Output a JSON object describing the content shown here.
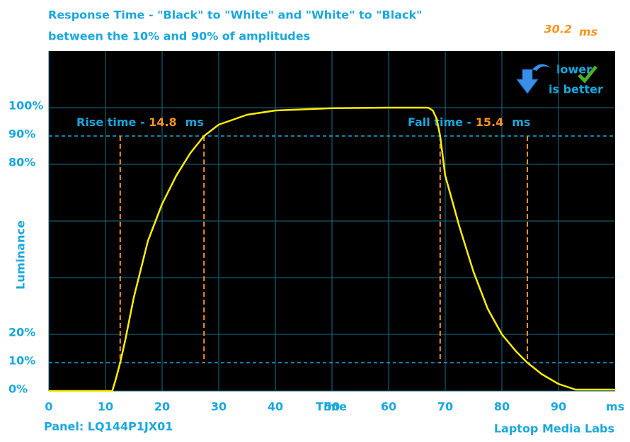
{
  "chart_data": {
    "type": "line",
    "title": "Response Time - \"Black\" to \"White\" and \"White\" to \"Black\"",
    "subtitle": "between the 10% and 90% of amplitudes",
    "headline_value": 30.2,
    "headline_unit": "ms",
    "badge": [
      "lower",
      "is better"
    ],
    "xlabel": "Time",
    "ylabel": "Luminance",
    "footer_left": "Panel: LQ144P1JX01",
    "footer_right": "Laptop Media Labs",
    "xlim": [
      0,
      100
    ],
    "ylim": [
      0,
      120
    ],
    "xticks": [
      0,
      10,
      20,
      30,
      40,
      50,
      60,
      70,
      80,
      90,
      {
        "value": 100,
        "label": "ms"
      }
    ],
    "yticks": [
      {
        "value": 0,
        "label": "0%"
      },
      {
        "value": 10,
        "label": "10%"
      },
      {
        "value": 20,
        "label": "20%"
      },
      {
        "value": 80,
        "label": "80%"
      },
      {
        "value": 90,
        "label": "90%"
      },
      {
        "value": 100,
        "label": "100%"
      }
    ],
    "ygrid": [
      0,
      20,
      40,
      60,
      80,
      100
    ],
    "xgrid": [
      0,
      10,
      20,
      30,
      40,
      50,
      60,
      70,
      80,
      90
    ],
    "hlines": [
      10,
      90
    ],
    "rise": {
      "label": "Rise time - ",
      "value": 14.8,
      "unit": "ms",
      "lines": [
        12.6,
        27.4
      ]
    },
    "fall": {
      "label": "Fall time - ",
      "value": 15.4,
      "unit": "ms",
      "lines": [
        69.1,
        84.5
      ]
    },
    "color": "#ffee00",
    "grid_color": "#1a6f8a",
    "ref_color": "#1aa7dd",
    "marker_color": "#f7941d",
    "x": [
      0,
      11.2,
      11.8,
      12.6,
      13.5,
      15,
      17.5,
      20,
      22.5,
      25,
      27.4,
      30,
      35,
      40,
      50,
      60,
      67,
      67.8,
      68.5,
      69.1,
      70,
      72.5,
      75,
      77.5,
      80,
      82.5,
      84.5,
      87,
      90,
      93,
      100
    ],
    "values": [
      0,
      0,
      4,
      10,
      18,
      33,
      53,
      66,
      76,
      84,
      90,
      94,
      97.5,
      99,
      99.8,
      100,
      100,
      99,
      96,
      90,
      76,
      58,
      42,
      29,
      20,
      14,
      10,
      6,
      2.5,
      0.5,
      0.5
    ]
  }
}
